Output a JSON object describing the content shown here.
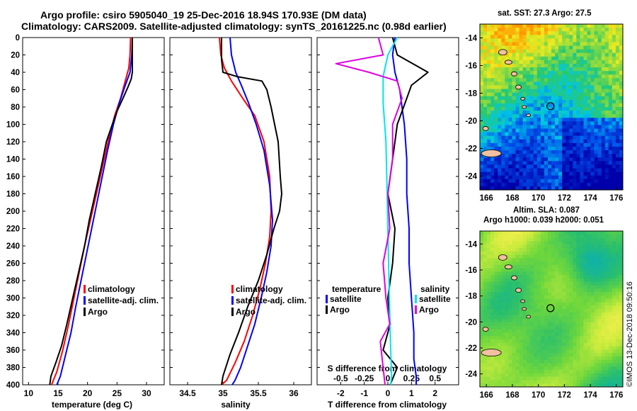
{
  "header": {
    "title_line1": "Argo profile: csiro 5905040_19 25-Dec-2016 18.94S 170.93E (DM data)",
    "title_line2": "Climatology: CARS2009. Satellite-adjusted climatology: synTS_20161225.nc (0.98d earlier)"
  },
  "colors": {
    "climatology": "#ff0000",
    "satellite": "#0000ff",
    "argo": "#000000",
    "sal_satellite": "#00e5ee",
    "sal_argo": "#e000e0"
  },
  "chart_data": [
    {
      "type": "line",
      "name": "temperature",
      "xlabel": "temperature (deg C)",
      "ylabel": "depth",
      "xlim": [
        9,
        33
      ],
      "ylim": [
        400,
        0
      ],
      "xticks": [
        10,
        15,
        20,
        25,
        30
      ],
      "yticks": [
        0,
        20,
        40,
        60,
        80,
        100,
        120,
        140,
        160,
        180,
        200,
        220,
        240,
        260,
        280,
        300,
        320,
        340,
        360,
        380,
        400
      ],
      "legend": [
        "climatology",
        "satellite-adj. clim.",
        "Argo"
      ],
      "series": [
        {
          "name": "climatology",
          "color": "#ff0000",
          "x": [
            27.3,
            27.2,
            27.0,
            26.4,
            25.6,
            24.6,
            23.5,
            22.5,
            21.5,
            20.5,
            19.5,
            18.6,
            17.7,
            16.8,
            15.8,
            14.8,
            13.9
          ],
          "y": [
            0,
            20,
            35,
            50,
            70,
            90,
            120,
            150,
            180,
            210,
            240,
            270,
            300,
            330,
            360,
            385,
            400
          ]
        },
        {
          "name": "satellite-adj. clim.",
          "color": "#0000ff",
          "x": [
            27.6,
            27.5,
            27.2,
            26.4,
            25.4,
            24.4,
            23.4,
            22.5,
            21.6,
            20.7,
            19.8,
            18.9,
            18.0,
            17.2,
            16.3,
            15.4,
            14.8
          ],
          "y": [
            0,
            20,
            40,
            55,
            75,
            100,
            130,
            160,
            190,
            220,
            250,
            280,
            310,
            340,
            365,
            390,
            400
          ]
        },
        {
          "name": "Argo",
          "color": "#000000",
          "x": [
            27.6,
            27.6,
            27.6,
            27.4,
            26.8,
            26.0,
            25.0,
            24.2,
            23.2,
            22.3,
            21.3,
            20.3,
            19.5,
            18.5,
            17.5,
            16.5,
            15.6,
            14.6,
            13.8,
            13.6
          ],
          "y": [
            0,
            20,
            40,
            48,
            58,
            70,
            85,
            100,
            120,
            150,
            180,
            210,
            240,
            270,
            300,
            330,
            355,
            375,
            390,
            400
          ]
        }
      ]
    },
    {
      "type": "line",
      "name": "salinity",
      "xlabel": "salinity",
      "xlim": [
        34.25,
        36.25
      ],
      "ylim": [
        400,
        0
      ],
      "xticks": [
        34.5,
        35,
        35.5,
        36
      ],
      "legend": [
        "climatology",
        "satellite-adj. clim.",
        "Argo"
      ],
      "series": [
        {
          "name": "climatology",
          "color": "#ff0000",
          "x": [
            34.95,
            34.97,
            35.02,
            35.12,
            35.28,
            35.45,
            35.58,
            35.66,
            35.68,
            35.66,
            35.6,
            35.52,
            35.42,
            35.3,
            35.17,
            35.05,
            34.98
          ],
          "y": [
            0,
            20,
            35,
            50,
            70,
            90,
            120,
            160,
            200,
            230,
            260,
            290,
            320,
            350,
            375,
            395,
            400
          ]
        },
        {
          "name": "satellite-adj. clim.",
          "color": "#0000ff",
          "x": [
            35.1,
            35.12,
            35.18,
            35.26,
            35.36,
            35.47,
            35.58,
            35.66,
            35.7,
            35.68,
            35.62,
            35.54,
            35.45,
            35.35,
            35.25,
            35.17,
            35.13
          ],
          "y": [
            0,
            20,
            40,
            55,
            75,
            100,
            130,
            170,
            210,
            240,
            270,
            300,
            330,
            355,
            380,
            395,
            400
          ]
        },
        {
          "name": "Argo",
          "color": "#000000",
          "x": [
            34.98,
            34.98,
            35.0,
            35.2,
            35.55,
            35.62,
            35.68,
            35.78,
            35.81,
            35.83,
            35.8,
            35.72,
            35.62,
            35.5,
            35.35,
            35.22,
            35.1,
            35.0,
            34.98
          ],
          "y": [
            0,
            25,
            40,
            45,
            50,
            60,
            80,
            120,
            160,
            180,
            200,
            220,
            250,
            280,
            310,
            340,
            365,
            390,
            400
          ]
        }
      ]
    },
    {
      "type": "line",
      "name": "differences",
      "xlabel": "T difference from climatology",
      "xlabel2": "S difference from climatology",
      "xlim": [
        -3,
        3
      ],
      "xticks": [
        -2,
        -1,
        0,
        1,
        2
      ],
      "xlim2": [
        -0.75,
        0.75
      ],
      "xticks2": [
        -0.5,
        -0.25,
        0,
        0.25,
        0.5
      ],
      "ylim": [
        400,
        0
      ],
      "legend_t": {
        "title": "temperature",
        "items": [
          "satellite",
          "Argo"
        ]
      },
      "legend_s": {
        "title": "salinity",
        "items": [
          "satellite",
          "Argo"
        ]
      },
      "series": [
        {
          "name": "T satellite",
          "color": "#0000ff",
          "axis": "T",
          "x": [
            0.3,
            0.2,
            0.3,
            0.5,
            0.7,
            0.8,
            0.8,
            0.9,
            0.9,
            1.0,
            1.1,
            1.1,
            1.2,
            1.2
          ],
          "y": [
            0,
            20,
            40,
            60,
            100,
            140,
            180,
            220,
            260,
            300,
            340,
            370,
            390,
            400
          ]
        },
        {
          "name": "T Argo",
          "color": "#000000",
          "axis": "T",
          "x": [
            0.2,
            0.4,
            1.7,
            1.0,
            0.8,
            0.4,
            0.2,
            0.0,
            0.3,
            0.2,
            0.0,
            0.1,
            -0.2,
            0.4,
            0.1
          ],
          "y": [
            0,
            20,
            40,
            55,
            70,
            100,
            140,
            180,
            220,
            260,
            300,
            330,
            360,
            380,
            400
          ]
        },
        {
          "name": "S satellite",
          "color": "#00e5ee",
          "axis": "S",
          "x": [
            0.1,
            0.0,
            -0.05,
            -0.05,
            -0.02,
            -0.01,
            0.0,
            0.01,
            0.02,
            0.03,
            0.04,
            0.03
          ],
          "y": [
            0,
            20,
            45,
            75,
            120,
            170,
            220,
            270,
            320,
            360,
            390,
            400
          ]
        },
        {
          "name": "S Argo",
          "color": "#e000e0",
          "axis": "S",
          "x": [
            -0.1,
            -0.05,
            -0.55,
            -0.2,
            0.1,
            0.15,
            0.05,
            0.05,
            0.0,
            0.02,
            -0.05,
            -0.02,
            0.02,
            -0.08,
            -0.05,
            -0.03
          ],
          "y": [
            0,
            20,
            30,
            40,
            50,
            70,
            100,
            140,
            180,
            220,
            260,
            300,
            330,
            350,
            380,
            400
          ]
        }
      ]
    },
    {
      "type": "heatmap",
      "name": "sst-map",
      "title": "sat. SST: 27.3 Argo: 27.5",
      "xlim": [
        165.5,
        176.5
      ],
      "ylim": [
        -25,
        -13
      ],
      "xticks": [
        166,
        168,
        170,
        172,
        174,
        176
      ],
      "yticks": [
        -14,
        -16,
        -18,
        -20,
        -22,
        -24
      ],
      "argo_position": [
        170.93,
        -18.94
      ]
    },
    {
      "type": "heatmap",
      "name": "sla-map",
      "title": "Altim. SLA: 0.087",
      "title2": "Argo h1000: 0.039 h2000: 0.051",
      "xlim": [
        165.5,
        176.5
      ],
      "ylim": [
        -25,
        -13
      ],
      "xticks": [
        166,
        168,
        170,
        172,
        174,
        176
      ],
      "yticks": [
        -14,
        -16,
        -18,
        -20,
        -22,
        -24
      ],
      "argo_position": [
        170.93,
        -18.94
      ]
    }
  ],
  "watermark": "©IMOS 13-Dec-2018 09:50:16"
}
